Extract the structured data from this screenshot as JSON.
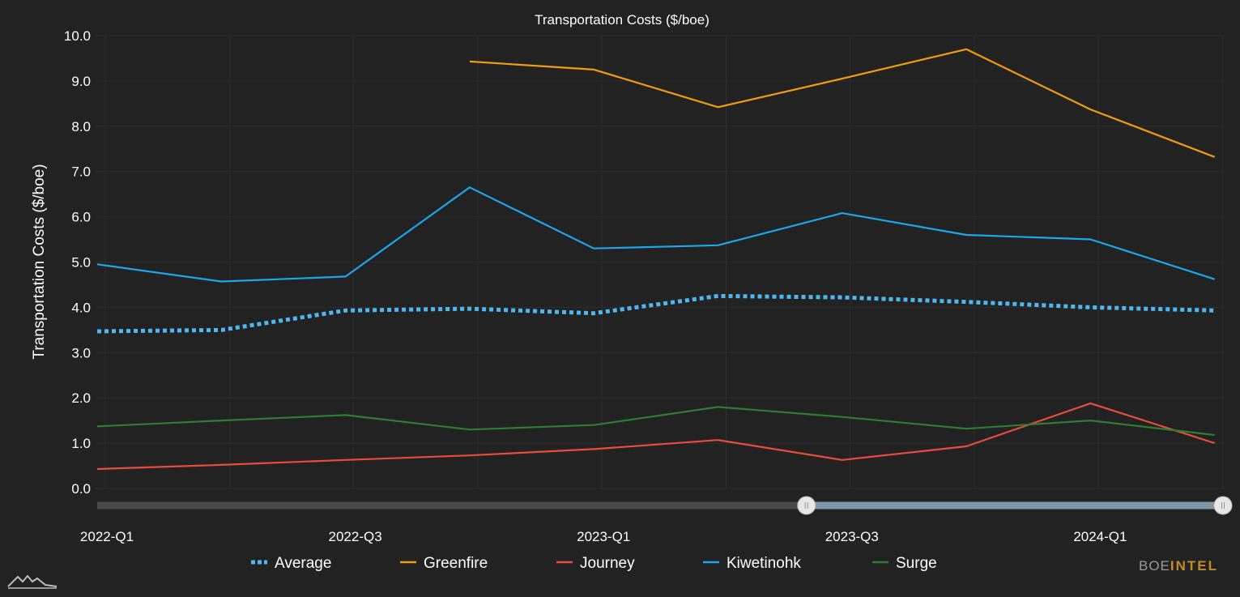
{
  "brand": {
    "part1": "BOE",
    "part2": "INTEL"
  },
  "colors": {
    "background": "#222222",
    "grid": "#2e2e2e",
    "text": "#ffffff",
    "slider_track": "#4a4a4a",
    "slider_selected": "#7d97a6"
  },
  "chart_data": {
    "type": "line",
    "title": "Transportation Costs ($/boe)",
    "xlabel": "",
    "ylabel": "Transportation Costs ($/boe)",
    "ylim": [
      0,
      10
    ],
    "yticks": [
      "0.0",
      "1.0",
      "2.0",
      "3.0",
      "4.0",
      "5.0",
      "6.0",
      "7.0",
      "8.0",
      "9.0",
      "10.0"
    ],
    "x": [
      "2022-Q1",
      "2022-Q2",
      "2022-Q3",
      "2022-Q4",
      "2023-Q1",
      "2023-Q2",
      "2023-Q3",
      "2023-Q4",
      "2024-Q1",
      "2024-Q2"
    ],
    "xtick_labels": [
      "2022-Q1",
      "2022-Q3",
      "2023-Q1",
      "2023-Q3",
      "2024-Q1"
    ],
    "grid": true,
    "legend": "bottom",
    "series": [
      {
        "name": "Average",
        "color": "#4db8f0",
        "style": "dotted",
        "values": [
          3.47,
          3.5,
          3.93,
          3.97,
          3.87,
          4.25,
          4.22,
          4.12,
          4.0,
          3.93
        ]
      },
      {
        "name": "Greenfire",
        "color": "#f39c12",
        "style": "solid",
        "values": [
          null,
          null,
          null,
          9.43,
          9.25,
          8.42,
          9.05,
          9.7,
          8.37,
          7.32
        ]
      },
      {
        "name": "Journey",
        "color": "#e74c3c",
        "style": "solid",
        "values": [
          0.43,
          0.52,
          0.63,
          0.73,
          0.87,
          1.07,
          0.63,
          0.93,
          1.88,
          1.0
        ]
      },
      {
        "name": "Kiwetinohk",
        "color": "#1ca7ec",
        "style": "solid",
        "values": [
          4.95,
          4.57,
          4.68,
          6.65,
          5.3,
          5.37,
          6.08,
          5.6,
          5.5,
          4.62
        ]
      },
      {
        "name": "Surge",
        "color": "#2e7d32",
        "style": "solid",
        "values": [
          1.37,
          1.5,
          1.62,
          1.3,
          1.4,
          1.8,
          1.58,
          1.32,
          1.5,
          1.18
        ]
      }
    ],
    "range_slider": {
      "start_fraction": 0.63,
      "end_fraction": 1.0
    }
  }
}
